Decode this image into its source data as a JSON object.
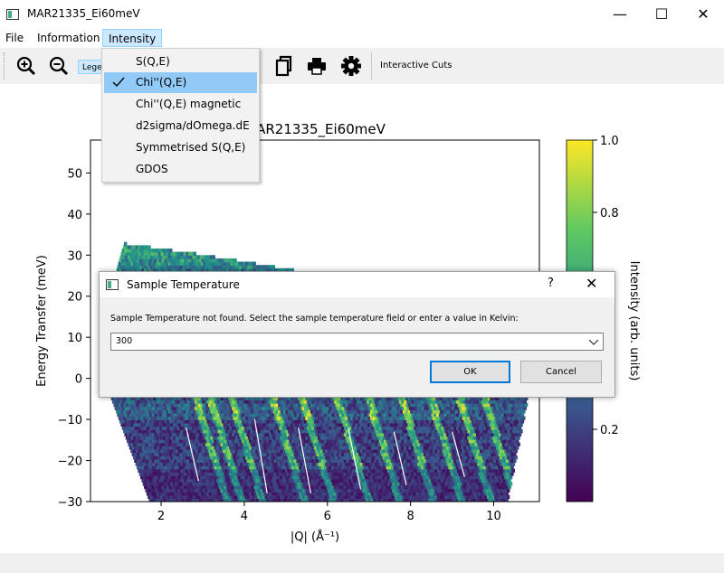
{
  "window": {
    "title": "MAR21335_Ei60meV",
    "minimize": "—",
    "maximize": "☐",
    "close": "✕"
  },
  "menubar": {
    "items": [
      "File",
      "Information",
      "Intensity"
    ]
  },
  "toolbar": {
    "legend_label": "Legend",
    "interactive_cuts": "Interactive Cuts"
  },
  "intensity_menu": {
    "items": [
      "S(Q,E)",
      "Chi''(Q,E)",
      "Chi''(Q,E) magnetic",
      "d2sigma/dOmega.dE",
      "Symmetrised S(Q,E)",
      "GDOS"
    ],
    "checked": "Chi''(Q,E)"
  },
  "chart_data": {
    "type": "heatmap",
    "title": "MAR21335_Ei60meV",
    "xlabel": "|Q| (Å⁻¹)",
    "ylabel": "Energy Transfer (meV)",
    "xlim": [
      0.3,
      11.1
    ],
    "ylim": [
      -30,
      58
    ],
    "xticks": [
      2,
      4,
      6,
      8,
      10
    ],
    "yticks": [
      -30,
      -20,
      -10,
      0,
      10,
      20,
      30,
      40,
      50
    ],
    "colorbar": {
      "label": "Intensity (arb. units)",
      "range": [
        0,
        1.0
      ],
      "ticks": [
        "1.0",
        "0.8",
        "0.2"
      ],
      "colormap": "viridis"
    }
  },
  "dialog": {
    "title": "Sample Temperature",
    "help": "?",
    "close": "✕",
    "message": "Sample Temperature not found. Select the sample temperature field or enter a value in Kelvin:",
    "value": "300",
    "ok": "OK",
    "cancel": "Cancel"
  },
  "colors": {
    "accent": "#0078d7",
    "menu_selected": "#91c9f7",
    "viridis_low": "#440154",
    "viridis_high": "#fde725"
  }
}
